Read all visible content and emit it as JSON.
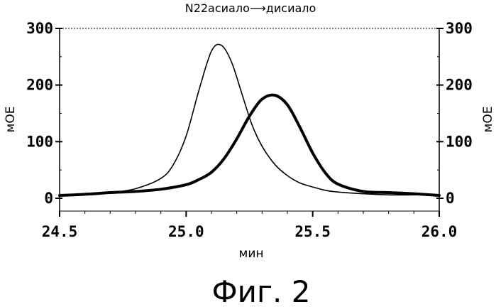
{
  "chart_data": {
    "type": "line",
    "title": "N22асиало⟶дисиало",
    "xlabel": "мин",
    "ylabel_left": "мОЕ",
    "ylabel_right": "мОЕ",
    "xlim": [
      24.5,
      26.0
    ],
    "ylim": [
      0,
      300
    ],
    "x_ticks": [
      "24.5",
      "25.0",
      "25.5",
      "26.0"
    ],
    "y_ticks": [
      "0",
      "100",
      "200",
      "300"
    ],
    "grid": false,
    "series": [
      {
        "style": "thin",
        "x": [
          24.5,
          24.6,
          24.7,
          24.8,
          24.9,
          24.95,
          25.0,
          25.05,
          25.1,
          25.14,
          25.18,
          25.22,
          25.26,
          25.3,
          25.35,
          25.4,
          25.45,
          25.5,
          25.55,
          25.6,
          25.7,
          25.8,
          25.9,
          26.0
        ],
        "y": [
          5,
          7,
          10,
          17,
          35,
          60,
          110,
          190,
          260,
          270,
          240,
          185,
          130,
          92,
          60,
          40,
          27,
          20,
          14,
          11,
          8,
          6,
          6,
          6
        ]
      },
      {
        "style": "thick",
        "x": [
          24.5,
          24.6,
          24.7,
          24.8,
          24.9,
          25.0,
          25.05,
          25.1,
          25.15,
          25.2,
          25.25,
          25.3,
          25.35,
          25.4,
          25.45,
          25.5,
          25.55,
          25.6,
          25.7,
          25.8,
          25.9,
          26.0
        ],
        "y": [
          5,
          7,
          10,
          12,
          16,
          24,
          33,
          46,
          70,
          105,
          145,
          175,
          182,
          165,
          125,
          80,
          45,
          25,
          12,
          10,
          8,
          5
        ]
      }
    ]
  },
  "caption": "Фиг. 2"
}
